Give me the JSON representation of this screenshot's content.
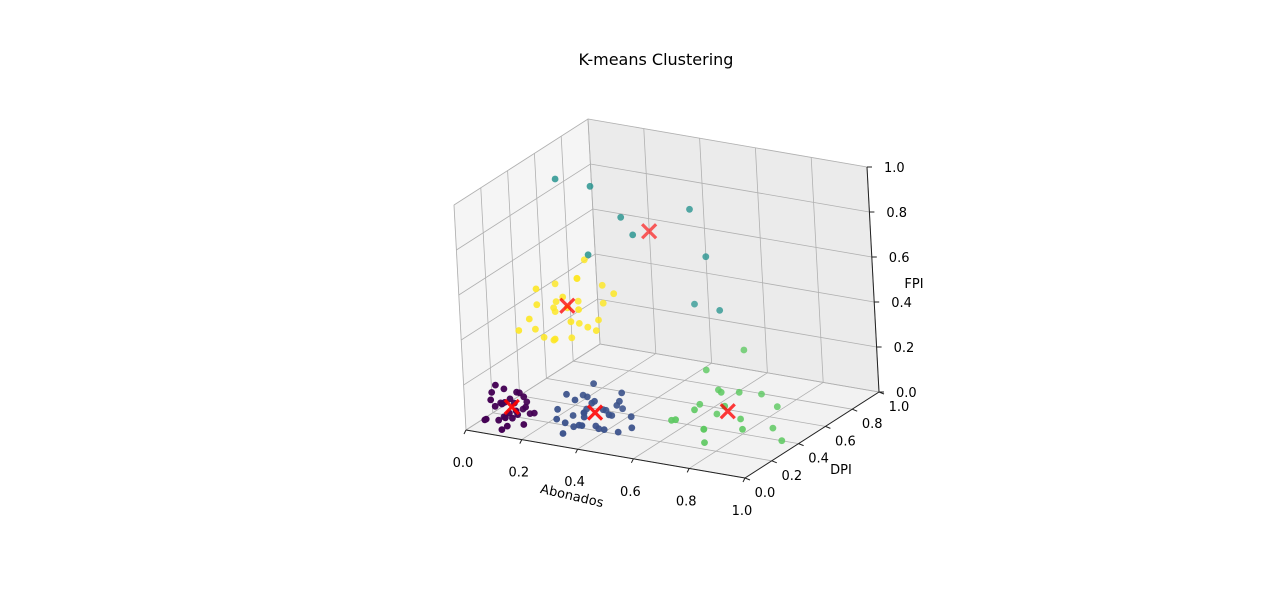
{
  "chart_data": {
    "type": "scatter",
    "title": "K-means Clustering",
    "xlabel": "Abonados",
    "ylabel": "DPI",
    "zlabel": "FPI",
    "xlim": [
      0,
      1
    ],
    "ylim": [
      0,
      1
    ],
    "zlim": [
      0,
      1
    ],
    "x_ticks": [
      "0.0",
      "0.2",
      "0.4",
      "0.6",
      "0.8",
      "1.0"
    ],
    "y_ticks": [
      "0.0",
      "0.2",
      "0.4",
      "0.6",
      "0.8",
      "1.0"
    ],
    "z_ticks": [
      "0.0",
      "0.2",
      "0.4",
      "0.6",
      "0.8",
      "1.0"
    ],
    "grid": true,
    "legend": "none",
    "colors": {
      "cluster0": "#440154",
      "cluster1": "#3b528b",
      "cluster2": "#21918c",
      "cluster3": "#5ec962",
      "cluster4": "#fde725",
      "centroid": "#ff0000"
    },
    "series": [
      {
        "cluster": 0,
        "points": [
          [
            0.08,
            0.08,
            0.03
          ],
          [
            0.1,
            0.12,
            0.05
          ],
          [
            0.06,
            0.1,
            0.08
          ],
          [
            0.12,
            0.06,
            0.02
          ],
          [
            0.09,
            0.15,
            0.1
          ],
          [
            0.14,
            0.1,
            0.06
          ],
          [
            0.05,
            0.05,
            0.04
          ],
          [
            0.11,
            0.18,
            0.12
          ],
          [
            0.07,
            0.14,
            0.02
          ],
          [
            0.13,
            0.03,
            0.07
          ],
          [
            0.16,
            0.12,
            0.09
          ],
          [
            0.04,
            0.12,
            0.13
          ],
          [
            0.1,
            0.07,
            0.11
          ],
          [
            0.15,
            0.17,
            0.04
          ],
          [
            0.08,
            0.2,
            0.06
          ],
          [
            0.12,
            0.14,
            0.14
          ],
          [
            0.06,
            0.02,
            0.05
          ],
          [
            0.17,
            0.08,
            0.03
          ],
          [
            0.09,
            0.11,
            0.16
          ],
          [
            0.13,
            0.19,
            0.08
          ],
          [
            0.05,
            0.16,
            0.07
          ],
          [
            0.11,
            0.04,
            0.01
          ],
          [
            0.14,
            0.15,
            0.12
          ],
          [
            0.07,
            0.09,
            0.18
          ],
          [
            0.16,
            0.05,
            0.1
          ],
          [
            0.1,
            0.22,
            0.03
          ],
          [
            0.12,
            0.1,
            0.04
          ],
          [
            0.08,
            0.13,
            0.09
          ],
          [
            0.18,
            0.14,
            0.06
          ],
          [
            0.06,
            0.07,
            0.12
          ]
        ]
      },
      {
        "cluster": 1,
        "points": [
          [
            0.3,
            0.12,
            0.05
          ],
          [
            0.34,
            0.18,
            0.08
          ],
          [
            0.28,
            0.22,
            0.04
          ],
          [
            0.38,
            0.1,
            0.1
          ],
          [
            0.32,
            0.25,
            0.12
          ],
          [
            0.4,
            0.16,
            0.03
          ],
          [
            0.36,
            0.28,
            0.06
          ],
          [
            0.26,
            0.15,
            0.09
          ],
          [
            0.42,
            0.22,
            0.07
          ],
          [
            0.31,
            0.08,
            0.02
          ],
          [
            0.37,
            0.2,
            0.13
          ],
          [
            0.44,
            0.12,
            0.05
          ],
          [
            0.29,
            0.28,
            0.11
          ],
          [
            0.35,
            0.32,
            0.04
          ],
          [
            0.41,
            0.28,
            0.09
          ],
          [
            0.33,
            0.14,
            0.15
          ],
          [
            0.46,
            0.18,
            0.02
          ],
          [
            0.27,
            0.2,
            0.14
          ],
          [
            0.39,
            0.06,
            0.08
          ],
          [
            0.43,
            0.26,
            0.12
          ],
          [
            0.3,
            0.18,
            0.01
          ],
          [
            0.36,
            0.1,
            0.06
          ],
          [
            0.48,
            0.24,
            0.07
          ],
          [
            0.34,
            0.24,
            0.1
          ],
          [
            0.4,
            0.34,
            0.05
          ],
          [
            0.32,
            0.3,
            0.16
          ],
          [
            0.45,
            0.14,
            0.11
          ],
          [
            0.28,
            0.1,
            0.07
          ],
          [
            0.38,
            0.18,
            0.03
          ],
          [
            0.42,
            0.3,
            0.14
          ],
          [
            0.35,
            0.16,
            0.09
          ],
          [
            0.5,
            0.2,
            0.04
          ],
          [
            0.31,
            0.26,
            0.06
          ]
        ]
      },
      {
        "cluster": 2,
        "points": [
          [
            0.12,
            0.5,
            0.95
          ],
          [
            0.22,
            0.55,
            0.92
          ],
          [
            0.3,
            0.6,
            0.78
          ],
          [
            0.5,
            0.7,
            0.82
          ],
          [
            0.25,
            0.45,
            0.66
          ],
          [
            0.55,
            0.7,
            0.62
          ],
          [
            0.58,
            0.72,
            0.38
          ],
          [
            0.45,
            0.8,
            0.35
          ],
          [
            0.35,
            0.58,
            0.72
          ]
        ]
      },
      {
        "cluster": 3,
        "points": [
          [
            0.62,
            0.25,
            0.08
          ],
          [
            0.68,
            0.3,
            0.12
          ],
          [
            0.72,
            0.28,
            0.05
          ],
          [
            0.65,
            0.4,
            0.1
          ],
          [
            0.78,
            0.32,
            0.15
          ],
          [
            0.7,
            0.42,
            0.06
          ],
          [
            0.75,
            0.22,
            0.02
          ],
          [
            0.82,
            0.35,
            0.09
          ],
          [
            0.68,
            0.48,
            0.14
          ],
          [
            0.9,
            0.42,
            0.04
          ],
          [
            0.8,
            0.55,
            0.12
          ],
          [
            0.74,
            0.38,
            0.18
          ],
          [
            0.85,
            0.3,
            0.07
          ],
          [
            0.66,
            0.2,
            0.11
          ],
          [
            0.95,
            0.38,
            0.01
          ],
          [
            0.62,
            0.52,
            0.2
          ],
          [
            0.77,
            0.45,
            0.16
          ],
          [
            0.72,
            0.6,
            0.28
          ],
          [
            0.88,
            0.5,
            0.1
          ],
          [
            0.7,
            0.32,
            0.03
          ]
        ]
      },
      {
        "cluster": 4,
        "points": [
          [
            0.1,
            0.3,
            0.4
          ],
          [
            0.15,
            0.4,
            0.45
          ],
          [
            0.2,
            0.35,
            0.5
          ],
          [
            0.12,
            0.45,
            0.38
          ],
          [
            0.25,
            0.3,
            0.42
          ],
          [
            0.18,
            0.5,
            0.52
          ],
          [
            0.08,
            0.38,
            0.32
          ],
          [
            0.22,
            0.42,
            0.36
          ],
          [
            0.14,
            0.28,
            0.55
          ],
          [
            0.28,
            0.48,
            0.44
          ],
          [
            0.16,
            0.35,
            0.3
          ],
          [
            0.1,
            0.5,
            0.48
          ],
          [
            0.24,
            0.38,
            0.58
          ],
          [
            0.2,
            0.28,
            0.34
          ],
          [
            0.3,
            0.4,
            0.4
          ],
          [
            0.12,
            0.32,
            0.46
          ],
          [
            0.26,
            0.52,
            0.5
          ],
          [
            0.18,
            0.44,
            0.28
          ],
          [
            0.08,
            0.26,
            0.36
          ],
          [
            0.22,
            0.48,
            0.62
          ],
          [
            0.32,
            0.34,
            0.38
          ],
          [
            0.14,
            0.4,
            0.42
          ],
          [
            0.28,
            0.3,
            0.48
          ],
          [
            0.16,
            0.54,
            0.4
          ],
          [
            0.2,
            0.38,
            0.44
          ],
          [
            0.35,
            0.42,
            0.52
          ],
          [
            0.12,
            0.36,
            0.3
          ],
          [
            0.24,
            0.44,
            0.34
          ]
        ]
      }
    ],
    "centroids": [
      [
        0.11,
        0.12,
        0.08
      ],
      [
        0.37,
        0.2,
        0.08
      ],
      [
        0.38,
        0.64,
        0.72
      ],
      [
        0.76,
        0.38,
        0.1
      ],
      [
        0.19,
        0.4,
        0.44
      ]
    ]
  }
}
